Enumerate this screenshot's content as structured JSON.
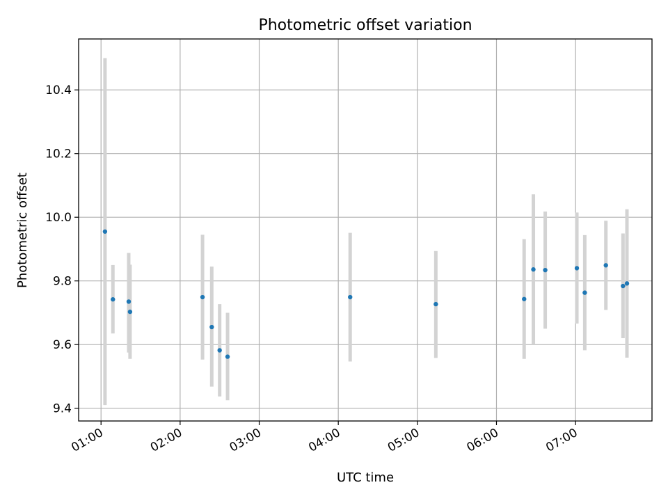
{
  "chart_data": {
    "type": "scatter",
    "title": "Photometric offset variation",
    "xlabel": "UTC time",
    "ylabel": "Photometric offset",
    "x_unit": "UTC hours",
    "xlim": [
      "00:43",
      "07:58"
    ],
    "ylim": [
      9.36,
      10.56
    ],
    "x_ticks": [
      "01:00",
      "02:00",
      "03:00",
      "04:00",
      "05:00",
      "06:00",
      "07:00"
    ],
    "y_ticks": [
      "9.4",
      "9.6",
      "9.8",
      "10.0",
      "10.2",
      "10.4"
    ],
    "grid": true,
    "colors": {
      "point": "#1f77b4",
      "errorbar": "#d3d3d3"
    },
    "series": [
      {
        "points": [
          {
            "x": "01:03",
            "y": 9.955,
            "ylow": 9.41,
            "yhigh": 10.5
          },
          {
            "x": "01:09",
            "y": 9.742,
            "ylow": 9.635,
            "yhigh": 9.85
          },
          {
            "x": "01:21",
            "y": 9.735,
            "ylow": 9.575,
            "yhigh": 9.888
          },
          {
            "x": "01:22",
            "y": 9.703,
            "ylow": 9.555,
            "yhigh": 9.851
          },
          {
            "x": "02:17",
            "y": 9.749,
            "ylow": 9.553,
            "yhigh": 9.945
          },
          {
            "x": "02:24",
            "y": 9.655,
            "ylow": 9.468,
            "yhigh": 9.845
          },
          {
            "x": "02:30",
            "y": 9.582,
            "ylow": 9.437,
            "yhigh": 9.727
          },
          {
            "x": "02:36",
            "y": 9.562,
            "ylow": 9.425,
            "yhigh": 9.7
          },
          {
            "x": "04:09",
            "y": 9.749,
            "ylow": 9.547,
            "yhigh": 9.951
          },
          {
            "x": "05:14",
            "y": 9.727,
            "ylow": 9.558,
            "yhigh": 9.894
          },
          {
            "x": "06:21",
            "y": 9.743,
            "ylow": 9.555,
            "yhigh": 9.931
          },
          {
            "x": "06:28",
            "y": 9.836,
            "ylow": 9.6,
            "yhigh": 10.072
          },
          {
            "x": "06:37",
            "y": 9.834,
            "ylow": 9.65,
            "yhigh": 10.018
          },
          {
            "x": "07:01",
            "y": 9.84,
            "ylow": 9.666,
            "yhigh": 10.015
          },
          {
            "x": "07:07",
            "y": 9.763,
            "ylow": 9.582,
            "yhigh": 9.944
          },
          {
            "x": "07:23",
            "y": 9.849,
            "ylow": 9.709,
            "yhigh": 9.989
          },
          {
            "x": "07:36",
            "y": 9.784,
            "ylow": 9.62,
            "yhigh": 9.949
          },
          {
            "x": "07:39",
            "y": 9.792,
            "ylow": 9.559,
            "yhigh": 10.025
          }
        ]
      }
    ]
  }
}
